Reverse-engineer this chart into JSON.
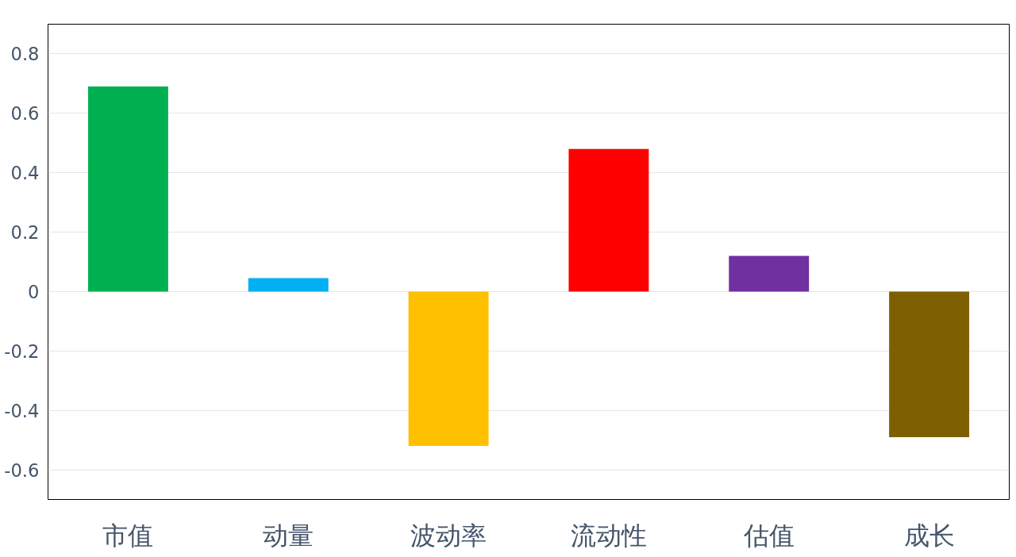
{
  "chart_data": {
    "type": "bar",
    "categories": [
      "市值",
      "动量",
      "波动率",
      "流动性",
      "估值",
      "成长"
    ],
    "values": [
      0.69,
      0.045,
      -0.52,
      0.48,
      0.12,
      -0.49
    ],
    "colors": [
      "#00b050",
      "#00b0f0",
      "#ffc000",
      "#ff0000",
      "#7030a0",
      "#7f6000"
    ],
    "ylim": [
      -0.7,
      0.9
    ],
    "yticks": [
      {
        "value": -0.6,
        "label": "-0.6"
      },
      {
        "value": -0.4,
        "label": "-0.4"
      },
      {
        "value": -0.2,
        "label": "-0.2"
      },
      {
        "value": 0,
        "label": "0"
      },
      {
        "value": 0.2,
        "label": "0.2"
      },
      {
        "value": 0.4,
        "label": "0.4"
      },
      {
        "value": 0.6,
        "label": "0.6"
      },
      {
        "value": 0.8,
        "label": "0.8"
      }
    ],
    "grid": "y"
  }
}
